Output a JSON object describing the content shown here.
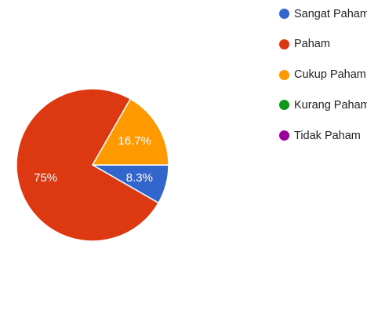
{
  "chart_data": {
    "type": "pie",
    "title": "",
    "slices": [
      {
        "label": "Sangat Paham",
        "value": 8.3,
        "display": "8.3%",
        "color": "#3366cc"
      },
      {
        "label": "Paham",
        "value": 75,
        "display": "75%",
        "color": "#dc3912"
      },
      {
        "label": "Cukup Paham",
        "value": 16.7,
        "display": "16.7%",
        "color": "#ff9900"
      },
      {
        "label": "Kurang Paham",
        "value": 0,
        "display": "",
        "color": "#109618"
      },
      {
        "label": "Tidak Paham",
        "value": 0,
        "display": "",
        "color": "#990099"
      }
    ],
    "legend_position": "right"
  }
}
